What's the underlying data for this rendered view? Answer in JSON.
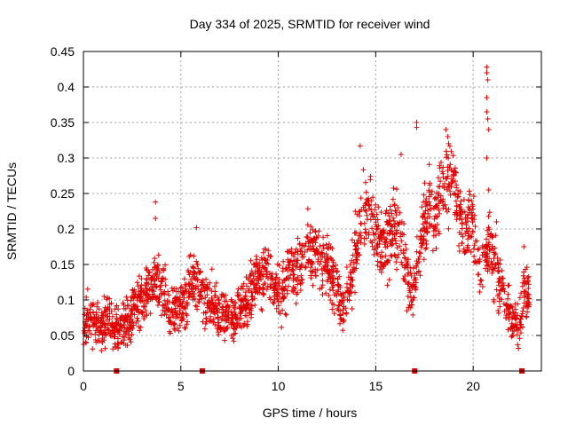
{
  "chart_data": {
    "type": "scatter",
    "title": "Day 334 of 2025, SRMTID for receiver wind",
    "xlabel": "GPS time / hours",
    "ylabel": "SRMTID / TECUs",
    "xlim": [
      0,
      23.5
    ],
    "ylim": [
      0,
      0.45
    ],
    "x_ticks": [
      0,
      5,
      10,
      15,
      20
    ],
    "x_tick_labels": [
      "0",
      "5",
      "10",
      "15",
      "20"
    ],
    "y_ticks": [
      0,
      0.05,
      0.1,
      0.15,
      0.2,
      0.25,
      0.3,
      0.35,
      0.4,
      0.45
    ],
    "y_tick_labels": [
      "0",
      "0.05",
      "0.1",
      "0.15",
      "0.2",
      "0.25",
      "0.3",
      "0.35",
      "0.4",
      "0.45"
    ],
    "grid": true,
    "marker": "+",
    "color": "#e00000",
    "series": [
      {
        "name": "SRMTID",
        "profile_x": [
          0.0,
          0.3,
          0.6,
          1.0,
          1.3,
          1.7,
          2.0,
          2.5,
          3.0,
          3.5,
          3.8,
          4.1,
          4.5,
          5.0,
          5.5,
          6.0,
          6.3,
          6.8,
          7.3,
          7.8,
          8.2,
          8.6,
          9.0,
          9.4,
          9.8,
          10.2,
          10.6,
          11.0,
          11.5,
          12.0,
          12.5,
          13.0,
          13.3,
          13.7,
          14.0,
          14.3,
          14.6,
          15.0,
          15.4,
          15.8,
          16.2,
          16.6,
          16.9,
          17.3,
          17.7,
          18.1,
          18.5,
          18.9,
          19.3,
          19.7,
          20.0,
          20.3,
          20.6,
          20.9,
          21.2,
          21.6,
          22.0,
          22.3,
          22.6,
          22.9
        ],
        "profile_y": [
          0.06,
          0.08,
          0.065,
          0.06,
          0.07,
          0.065,
          0.06,
          0.08,
          0.1,
          0.12,
          0.13,
          0.11,
          0.08,
          0.09,
          0.12,
          0.13,
          0.1,
          0.09,
          0.08,
          0.07,
          0.09,
          0.11,
          0.13,
          0.14,
          0.12,
          0.11,
          0.14,
          0.15,
          0.17,
          0.16,
          0.15,
          0.12,
          0.08,
          0.12,
          0.18,
          0.22,
          0.23,
          0.19,
          0.17,
          0.2,
          0.19,
          0.14,
          0.1,
          0.18,
          0.23,
          0.22,
          0.26,
          0.28,
          0.22,
          0.2,
          0.21,
          0.15,
          0.16,
          0.18,
          0.13,
          0.11,
          0.07,
          0.06,
          0.11,
          0.1
        ],
        "spread": 0.045,
        "count": 2200,
        "peaks": [
          {
            "x": 3.7,
            "y": 0.238
          },
          {
            "x": 3.7,
            "y": 0.215
          },
          {
            "x": 5.8,
            "y": 0.202
          },
          {
            "x": 14.2,
            "y": 0.317
          },
          {
            "x": 16.3,
            "y": 0.305
          },
          {
            "x": 17.1,
            "y": 0.35
          },
          {
            "x": 17.1,
            "y": 0.343
          },
          {
            "x": 18.6,
            "y": 0.34
          },
          {
            "x": 18.7,
            "y": 0.33
          },
          {
            "x": 20.7,
            "y": 0.428
          },
          {
            "x": 20.7,
            "y": 0.42
          },
          {
            "x": 20.75,
            "y": 0.41
          },
          {
            "x": 20.7,
            "y": 0.385
          },
          {
            "x": 20.7,
            "y": 0.365
          },
          {
            "x": 20.75,
            "y": 0.355
          },
          {
            "x": 20.8,
            "y": 0.34
          },
          {
            "x": 20.7,
            "y": 0.3
          },
          {
            "x": 20.8,
            "y": 0.255
          },
          {
            "x": 21.2,
            "y": 0.21
          },
          {
            "x": 22.6,
            "y": 0.175
          }
        ]
      }
    ],
    "gap_markers_x": [
      1.7,
      6.1,
      17.0,
      22.5
    ]
  }
}
